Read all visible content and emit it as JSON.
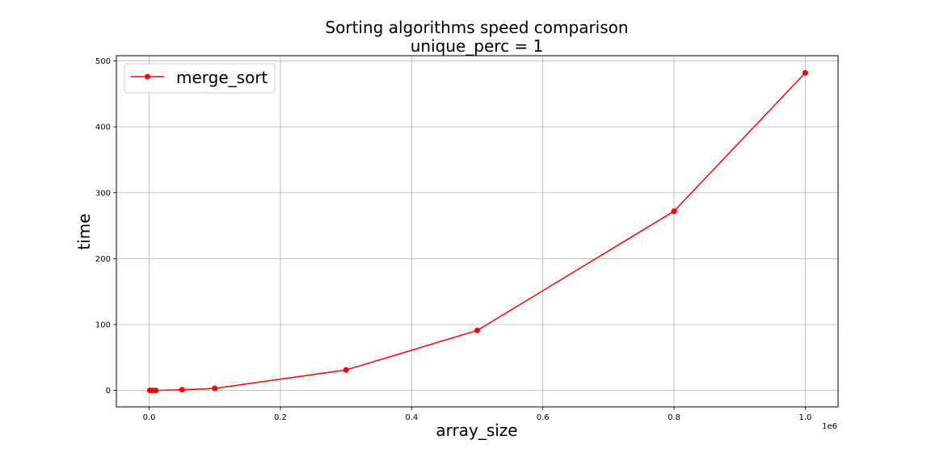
{
  "chart_data": {
    "type": "line",
    "title": "Sorting algorithms speed comparison",
    "subtitle": "unique_perc = 1",
    "xlabel": "array_size",
    "ylabel": "time",
    "x_offset_label": "1e6",
    "xlim": [
      -0.05,
      1.05
    ],
    "ylim": [
      -25,
      508
    ],
    "x_scale_factor": 1000000,
    "xticks": [
      0.0,
      0.2,
      0.4,
      0.6,
      0.8,
      1.0
    ],
    "xtick_labels": [
      "0.0",
      "0.2",
      "0.4",
      "0.6",
      "0.8",
      "1.0"
    ],
    "yticks": [
      0,
      100,
      200,
      300,
      400,
      500
    ],
    "ytick_labels": [
      "0",
      "100",
      "200",
      "300",
      "400",
      "500"
    ],
    "grid": true,
    "legend_position": "top-left",
    "series": [
      {
        "name": "merge_sort",
        "color": "#ff0000",
        "marker": "circle",
        "x": [
          1000,
          5000,
          10000,
          50000,
          100000,
          300000,
          500000,
          800000,
          1000000
        ],
        "y": [
          0,
          0,
          0,
          1,
          3,
          31,
          91,
          272,
          482
        ]
      }
    ]
  }
}
